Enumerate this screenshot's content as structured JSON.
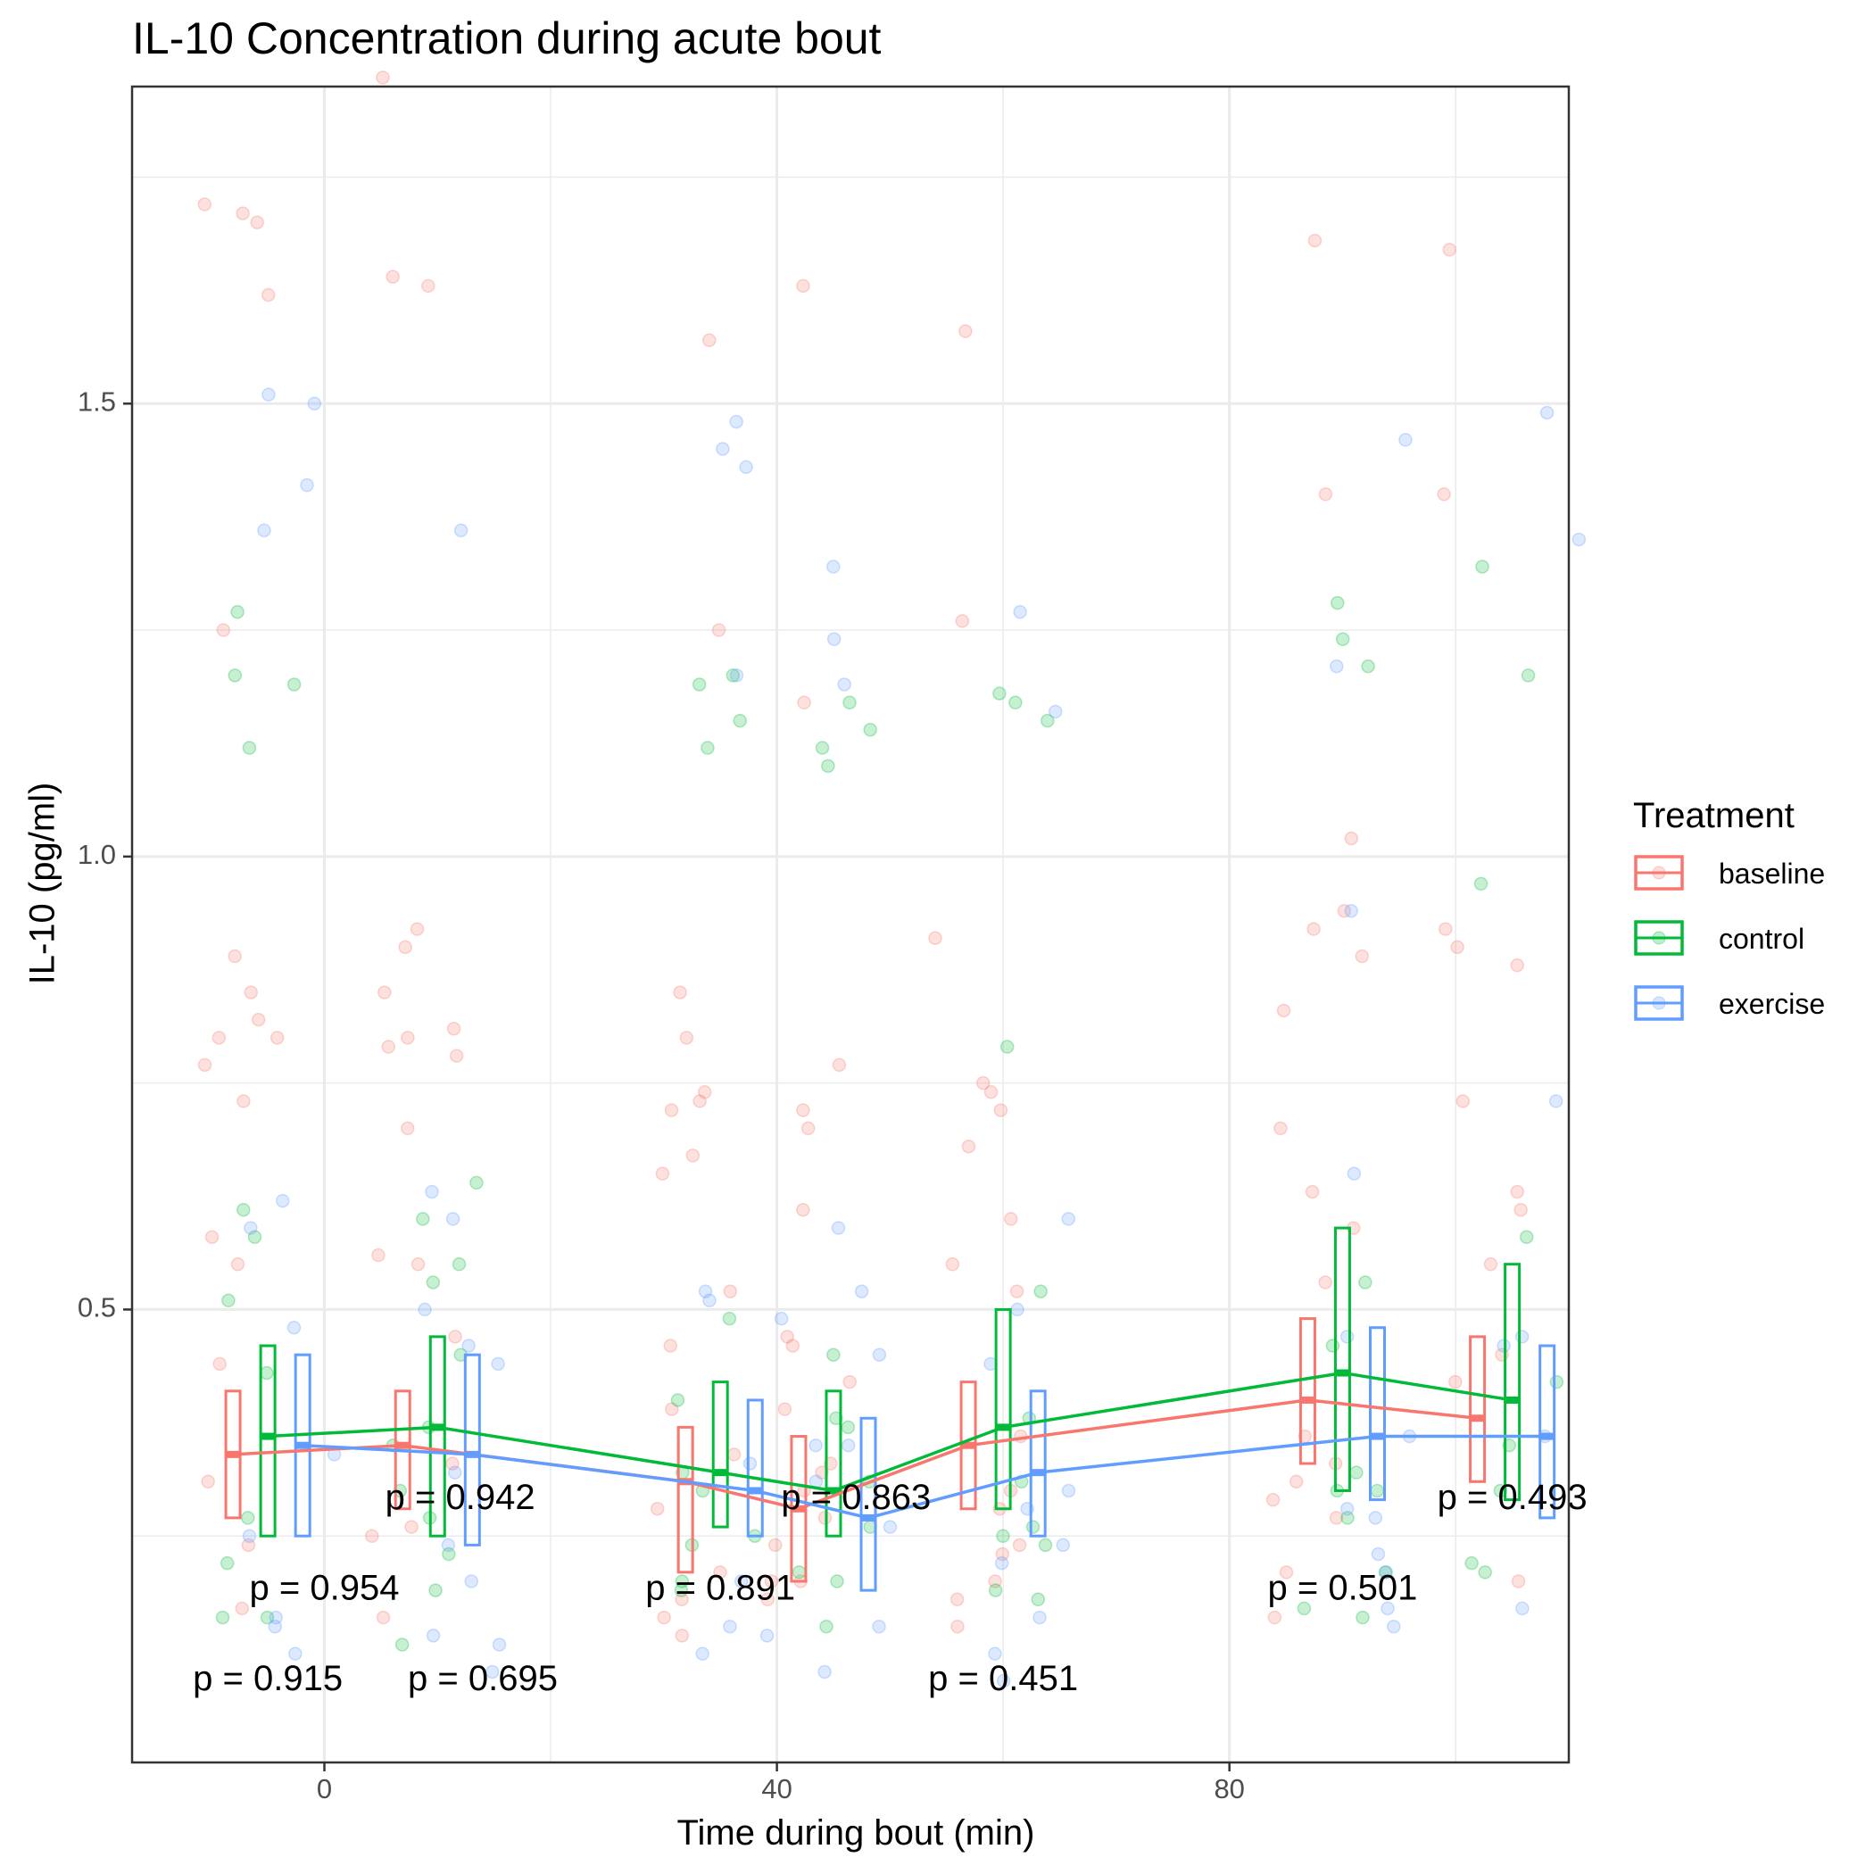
{
  "chart_data": {
    "type": "scatter",
    "title": "IL-10 Concentration during acute bout",
    "xlabel": "Time during bout (min)",
    "ylabel": "IL-10 (pg/ml)",
    "xlim": [
      -17,
      110
    ],
    "ylim": [
      0.0,
      1.85
    ],
    "xticks": [
      0,
      40,
      80
    ],
    "yticks": [
      0.5,
      1.0,
      1.5
    ],
    "ytick_labels": [
      "0.5",
      "1.0",
      "1.5"
    ],
    "xtick_labels": [
      "0",
      "40",
      "80"
    ],
    "grid": true,
    "legend_title": "Treatment",
    "legend_position": "right",
    "series": [
      {
        "name": "baseline",
        "color": "#F8766D",
        "times": [
          -5,
          10,
          35,
          45,
          60,
          90,
          105
        ],
        "means": [
          0.34,
          0.35,
          0.31,
          0.28,
          0.35,
          0.4,
          0.38
        ],
        "box_lower": [
          0.27,
          0.28,
          0.21,
          0.2,
          0.28,
          0.33,
          0.31
        ],
        "box_upper": [
          0.41,
          0.41,
          0.37,
          0.36,
          0.42,
          0.49,
          0.47
        ],
        "points": [
          0.17,
          0.24,
          0.31,
          0.44,
          0.55,
          0.73,
          0.77,
          0.8,
          0.85,
          0.89,
          1.25,
          1.62,
          1.7,
          1.72,
          1.71,
          0.8,
          0.82,
          0.58,
          0.55,
          0.26,
          0.16,
          0.25,
          0.33,
          0.47,
          0.56,
          0.7,
          0.81,
          0.85,
          0.9,
          0.92,
          1.63,
          1.64,
          1.86,
          0.78,
          0.8,
          0.79,
          0.73,
          0.85,
          0.16,
          0.21,
          0.14,
          0.18,
          0.28,
          0.34,
          0.39,
          0.52,
          0.67,
          0.72,
          0.74,
          0.8,
          1.25,
          1.57,
          0.65,
          0.46,
          0.3,
          0.2,
          0.18,
          0.2,
          0.27,
          0.32,
          0.42,
          0.46,
          0.61,
          0.7,
          0.72,
          0.77,
          1.17,
          1.63,
          0.47,
          0.39,
          0.33,
          0.24,
          0.15,
          0.23,
          0.3,
          0.36,
          0.52,
          0.6,
          0.72,
          0.74,
          0.75,
          0.91,
          1.26,
          1.58,
          0.55,
          0.68,
          0.2,
          0.28,
          0.18,
          0.24,
          0.29,
          0.36,
          0.53,
          0.63,
          0.7,
          0.89,
          0.92,
          1.02,
          1.4,
          1.68,
          0.83,
          0.94,
          0.59,
          0.31,
          0.16,
          0.21,
          0.27,
          0.33,
          0.45,
          0.61,
          0.73,
          0.88,
          0.9,
          0.92,
          1.67,
          1.4,
          0.55,
          0.63,
          0.2,
          0.42
        ]
      },
      {
        "name": "control",
        "color": "#00BA38",
        "times": [
          -5,
          10,
          35,
          45,
          60,
          90,
          105
        ],
        "means": [
          0.36,
          0.37,
          0.32,
          0.3,
          0.37,
          0.43,
          0.4
        ],
        "box_lower": [
          0.25,
          0.25,
          0.26,
          0.25,
          0.28,
          0.3,
          0.29
        ],
        "box_upper": [
          0.46,
          0.47,
          0.42,
          0.41,
          0.5,
          0.59,
          0.55
        ],
        "points": [
          0.16,
          0.22,
          0.27,
          0.43,
          0.51,
          0.58,
          0.61,
          1.12,
          1.19,
          1.2,
          1.27,
          0.16,
          0.23,
          0.3,
          0.37,
          0.13,
          0.19,
          0.27,
          0.35,
          0.45,
          0.53,
          0.55,
          0.6,
          0.64,
          1.15,
          1.2,
          1.19,
          1.12,
          0.2,
          0.25,
          0.32,
          0.19,
          0.24,
          0.3,
          0.4,
          0.49,
          1.1,
          1.12,
          0.2,
          0.26,
          0.38,
          0.15,
          0.21,
          0.31,
          0.37,
          0.45,
          1.14,
          1.17,
          1.18,
          0.24,
          0.18,
          0.19,
          0.25,
          0.31,
          0.38,
          0.52,
          0.79,
          1.15,
          1.17,
          0.26,
          0.3,
          0.17,
          0.21,
          0.27,
          0.32,
          0.46,
          0.53,
          1.21,
          1.24,
          1.28,
          0.3,
          0.16,
          0.22,
          0.3,
          0.35,
          0.42,
          0.58,
          0.97,
          1.2,
          1.32,
          0.21
        ]
      },
      {
        "name": "exercise",
        "color": "#619CFF",
        "times": [
          -5,
          10,
          35,
          45,
          60,
          90,
          105
        ],
        "means": [
          0.35,
          0.34,
          0.3,
          0.27,
          0.32,
          0.36,
          0.36
        ],
        "box_lower": [
          0.25,
          0.24,
          0.25,
          0.19,
          0.25,
          0.29,
          0.27
        ],
        "box_upper": [
          0.45,
          0.45,
          0.4,
          0.38,
          0.41,
          0.48,
          0.46
        ],
        "points": [
          0.12,
          0.16,
          0.25,
          0.34,
          0.48,
          0.59,
          0.62,
          1.36,
          1.41,
          1.51,
          1.5,
          0.15,
          0.13,
          0.2,
          0.6,
          0.1,
          0.14,
          0.24,
          0.32,
          0.44,
          0.46,
          0.5,
          0.63,
          1.36,
          1.45,
          1.48,
          1.43,
          0.15,
          0.12,
          0.52,
          0.14,
          0.2,
          0.33,
          0.49,
          0.51,
          1.2,
          1.32,
          0.35,
          0.31,
          0.1,
          0.15,
          0.26,
          0.35,
          0.52,
          0.59,
          1.19,
          1.24,
          0.45,
          0.28,
          0.09,
          0.16,
          0.24,
          0.3,
          0.5,
          0.6,
          1.16,
          1.27,
          0.44,
          0.22,
          0.12,
          0.17,
          0.27,
          0.36,
          0.47,
          0.65,
          0.94,
          1.21,
          1.46,
          0.23,
          0.15,
          0.21,
          0.28,
          0.36,
          0.46,
          0.73,
          1.35,
          1.49,
          0.47,
          0.17
        ]
      }
    ],
    "annotations": [
      {
        "text": "p = 0.915",
        "x": -5,
        "y": 0.09
      },
      {
        "text": "p = 0.954",
        "x": 0,
        "y": 0.19
      },
      {
        "text": "p = 0.942",
        "x": 12,
        "y": 0.29
      },
      {
        "text": "p = 0.695",
        "x": 14,
        "y": 0.09
      },
      {
        "text": "p = 0.891",
        "x": 35,
        "y": 0.19
      },
      {
        "text": "p = 0.863",
        "x": 47,
        "y": 0.29
      },
      {
        "text": "p = 0.451",
        "x": 60,
        "y": 0.09
      },
      {
        "text": "p = 0.501",
        "x": 90,
        "y": 0.19
      },
      {
        "text": "p = 0.493",
        "x": 105,
        "y": 0.29
      }
    ]
  }
}
